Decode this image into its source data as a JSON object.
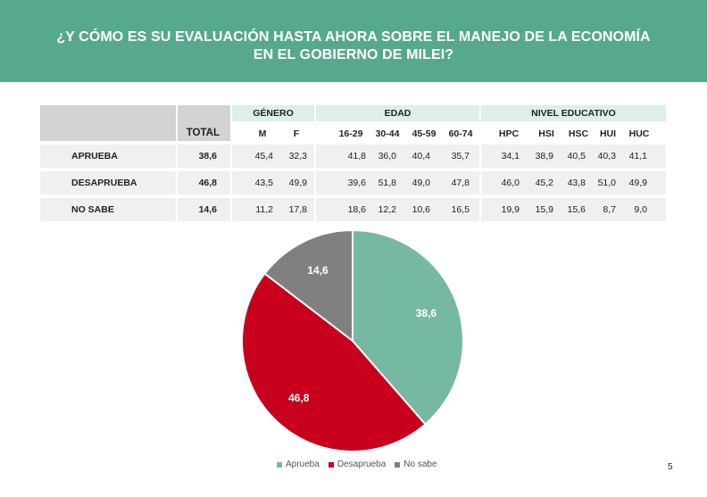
{
  "header": {
    "line1": "¿Y CÓMO ES SU EVALUACIÓN HASTA AHORA SOBRE EL MANEJO DE LA ECONOMÍA",
    "line2": "EN EL GOBIERNO DE MILEI?"
  },
  "table": {
    "groups": {
      "gender": "GÉNERO",
      "age": "EDAD",
      "education": "NIVEL EDUCATIVO"
    },
    "columns": {
      "total": "TOTAL",
      "gender": [
        "M",
        "F"
      ],
      "age": [
        "16-29",
        "30-44",
        "45-59",
        "60-74"
      ],
      "education": [
        "HPC",
        "HSI",
        "HSC",
        "HUI",
        "HUC"
      ]
    },
    "rows": [
      {
        "label": "APRUEBA",
        "total": "38,6",
        "gender": [
          "45,4",
          "32,3"
        ],
        "age": [
          "41,8",
          "36,0",
          "40,4",
          "35,7"
        ],
        "education": [
          "34,1",
          "38,9",
          "40,5",
          "40,3",
          "41,1"
        ]
      },
      {
        "label": "DESAPRUEBA",
        "total": "46,8",
        "gender": [
          "43,5",
          "49,9"
        ],
        "age": [
          "39,6",
          "51,8",
          "49,0",
          "47,8"
        ],
        "education": [
          "46,0",
          "45,2",
          "43,8",
          "51,0",
          "49,9"
        ]
      },
      {
        "label": "NO SABE",
        "total": "14,6",
        "gender": [
          "11,2",
          "17,8"
        ],
        "age": [
          "18,6",
          "12,2",
          "10,6",
          "16,5"
        ],
        "education": [
          "19,9",
          "15,9",
          "15,6",
          "8,7",
          "9,0"
        ]
      }
    ]
  },
  "chart_data": {
    "type": "pie",
    "categories": [
      "Aprueba",
      "Desaprueba",
      "No sabe"
    ],
    "values": [
      38.6,
      46.8,
      14.6
    ],
    "data_labels": [
      "38,6",
      "46,8",
      "14,6"
    ],
    "colors": [
      "#76b9a2",
      "#c8001e",
      "#808080"
    ],
    "legend_position": "bottom"
  },
  "page_number": "5"
}
